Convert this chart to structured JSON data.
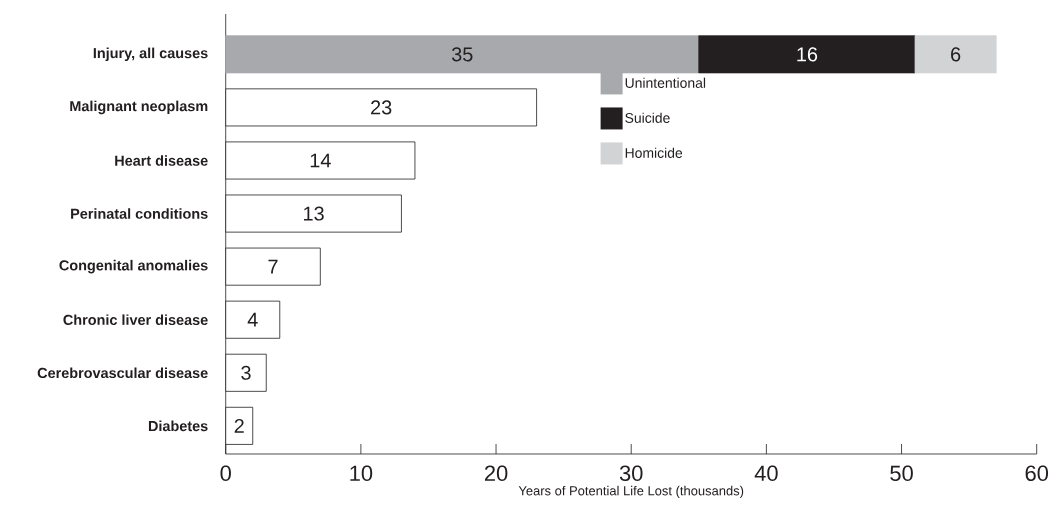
{
  "chart_data": {
    "type": "bar",
    "orientation": "horizontal",
    "stacked": true,
    "data_labels": true,
    "legend": "top",
    "xlabel": "Years of Potential Life Lost (thousands)",
    "categories": [
      "Injury, all causes",
      "Malignant neoplasm",
      "Heart disease",
      "Perinatal conditions",
      "Congenital anomalies",
      "Chronic liver disease",
      "Cerebrovascular disease",
      "Diabetes"
    ],
    "series": [
      {
        "name": "Unintentional",
        "color": "#a7a9ac",
        "values": [
          35,
          null,
          null,
          null,
          null,
          null,
          null,
          null
        ]
      },
      {
        "name": "Suicide",
        "color": "#231f20",
        "values": [
          16,
          null,
          null,
          null,
          null,
          null,
          null,
          null
        ]
      },
      {
        "name": "Homicide",
        "color": "#d1d3d4",
        "values": [
          6,
          null,
          null,
          null,
          null,
          null,
          null,
          null
        ]
      },
      {
        "color": "#ffffff",
        "values": [
          null,
          23,
          14,
          13,
          7,
          4,
          3,
          2
        ]
      }
    ],
    "xlim": [
      0,
      60
    ],
    "xticks": [
      0,
      10,
      20,
      30,
      40,
      50,
      60
    ]
  }
}
